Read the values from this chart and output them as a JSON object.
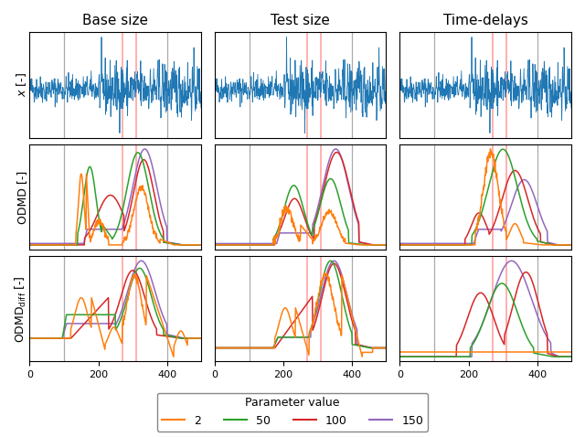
{
  "col_titles": [
    "Base size",
    "Test size",
    "Time-delays"
  ],
  "row_ylabels": [
    "$x$ [-]",
    "ODMD [-]",
    "ODMD$_{\\mathrm{diff}}$ [-]"
  ],
  "vlines_gray": [
    100,
    400
  ],
  "vlines_pink": [
    270,
    310
  ],
  "xmax": 500,
  "xticks": [
    0,
    200,
    400
  ],
  "colors": {
    "2": "#ff7f0e",
    "50": "#2ca02c",
    "100": "#d62728",
    "150": "#9467bd"
  },
  "legend_labels": [
    "2",
    "50",
    "100",
    "150"
  ],
  "signal_color": "#1f77b4",
  "background_color": "#ffffff",
  "title_fontsize": 11,
  "label_fontsize": 9,
  "tick_fontsize": 8
}
